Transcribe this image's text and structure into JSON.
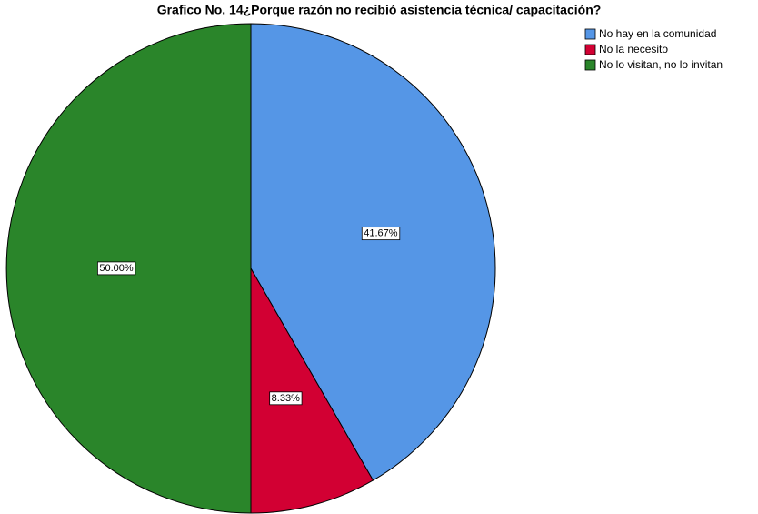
{
  "chart_data": {
    "type": "pie",
    "title": "Grafico No. 14¿Porque razón no recibió asistencia técnica/ capacitación?",
    "categories": [
      "No hay en la comunidad",
      "No la necesito",
      "No lo visitan, no lo invitan"
    ],
    "values": [
      41.67,
      8.33,
      50.0
    ],
    "value_labels": [
      "41.67%",
      "8.33%",
      "50.00%"
    ],
    "colors": [
      "#5596e6",
      "#d20033",
      "#2a852a"
    ],
    "legend": "top-right"
  }
}
